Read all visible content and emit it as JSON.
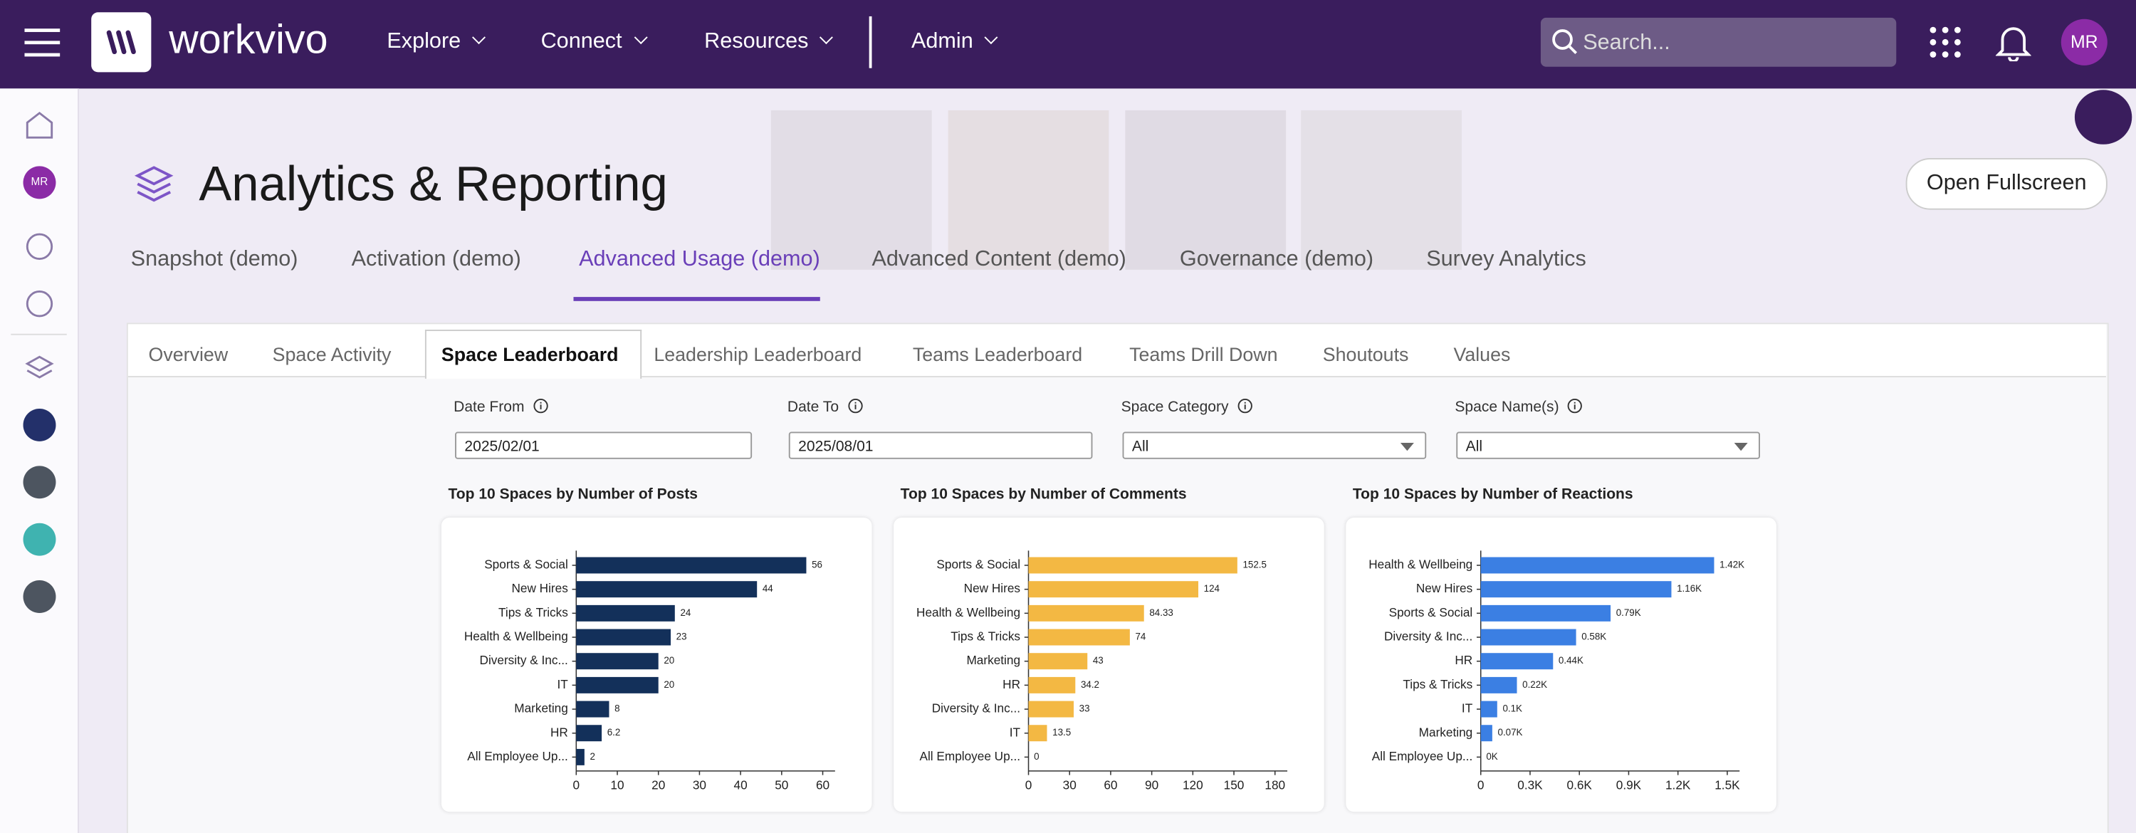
{
  "topbar": {
    "brand": "workvivo",
    "nav": [
      "Explore",
      "Connect",
      "Resources",
      "Admin"
    ],
    "search_placeholder": "Search...",
    "avatar": "MR"
  },
  "sidebar": {
    "avatar": "MR"
  },
  "header": {
    "title": "Analytics & Reporting",
    "button": "Open Fullscreen"
  },
  "tabs": [
    "Snapshot (demo)",
    "Activation (demo)",
    "Advanced Usage (demo)",
    "Advanced Content (demo)",
    "Governance (demo)",
    "Survey Analytics"
  ],
  "subtabs": [
    "Overview",
    "Space Activity",
    "Space Leaderboard",
    "Leadership Leaderboard",
    "Teams Leaderboard",
    "Teams Drill Down",
    "Shoutouts",
    "Values"
  ],
  "filters": [
    {
      "label": "Date From",
      "value": "2025/02/01"
    },
    {
      "label": "Date To",
      "value": "2025/08/01"
    },
    {
      "label": "Space Category",
      "value": "All"
    },
    {
      "label": "Space Name(s)",
      "value": "All"
    }
  ],
  "chart_data": [
    {
      "type": "bar",
      "orientation": "horizontal",
      "title": "Top 10 Spaces by Number of Posts",
      "color": "#13305a",
      "categories": [
        "Sports & Social",
        "New Hires",
        "Tips & Tricks",
        "Health & Wellbeing",
        "Diversity & Inc...",
        "IT",
        "Marketing",
        "HR",
        "All Employee Up..."
      ],
      "values": [
        56,
        44,
        24,
        23,
        20,
        20,
        8,
        6.2,
        2
      ],
      "xlim": [
        0,
        63
      ],
      "xticks": [
        0,
        10,
        20,
        30,
        40,
        50,
        60
      ]
    },
    {
      "type": "bar",
      "orientation": "horizontal",
      "title": "Top 10 Spaces by Number of Comments",
      "color": "#f3b843",
      "categories": [
        "Sports & Social",
        "New Hires",
        "Health & Wellbeing",
        "Tips & Tricks",
        "Marketing",
        "HR",
        "Diversity & Inc...",
        "IT",
        "All Employee Up..."
      ],
      "values": [
        152.5,
        124,
        84.33,
        74,
        43,
        34.2,
        33,
        13.5,
        0
      ],
      "xlim": [
        0,
        189
      ],
      "xticks": [
        0,
        30,
        60,
        90,
        120,
        150,
        180
      ]
    },
    {
      "type": "bar",
      "orientation": "horizontal",
      "title": "Top 10 Spaces by Number of Reactions",
      "color": "#3b7fe3",
      "categories": [
        "Health & Wellbeing",
        "New Hires",
        "Sports & Social",
        "Diversity & Inc...",
        "HR",
        "Tips & Tricks",
        "IT",
        "Marketing",
        "All Employee Up..."
      ],
      "values": [
        1420,
        1160,
        790,
        580,
        440,
        220,
        100,
        70,
        0
      ],
      "value_labels": [
        "1.42K",
        "1.16K",
        "0.79K",
        "0.58K",
        "0.44K",
        "0.22K",
        "0.1K",
        "0.07K",
        "0K"
      ],
      "xlim": [
        0,
        1575
      ],
      "xticks": [
        0,
        {
          "value": 300,
          "label": "0.3K"
        },
        {
          "value": 600,
          "label": "0.6K"
        },
        {
          "value": 900,
          "label": "0.9K"
        },
        {
          "value": 1200,
          "label": "1.2K"
        },
        {
          "value": 1500,
          "label": "1.5K"
        }
      ]
    }
  ]
}
